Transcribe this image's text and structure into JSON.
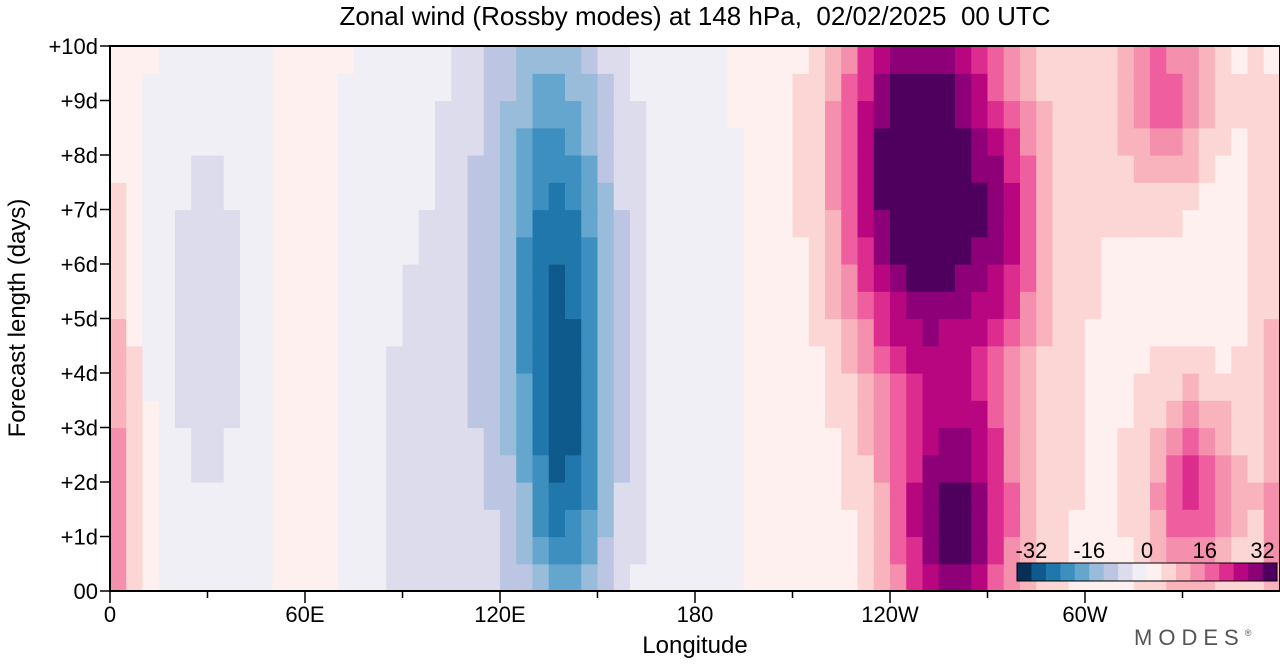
{
  "chart_data": {
    "type": "heatmap",
    "title": "Zonal wind (Rossby modes) at 148 hPa,  02/02/2025  00 UTC",
    "xlabel": "Longitude",
    "ylabel": "Forecast length (days)",
    "x_ticks": [
      "0",
      "60E",
      "120E",
      "180",
      "120W",
      "60W"
    ],
    "y_ticks": [
      "00",
      "+1d",
      "+2d",
      "+3d",
      "+4d",
      "+5d",
      "+6d",
      "+7d",
      "+8d",
      "+9d",
      "+10d"
    ],
    "colorbar": {
      "labels": [
        "-32",
        "-16",
        "0",
        "16",
        "32"
      ],
      "levels": [
        -36,
        -32,
        -28,
        -24,
        -20,
        -16,
        -12,
        -8,
        -4,
        0,
        4,
        8,
        12,
        16,
        20,
        24,
        28,
        32,
        36
      ],
      "colors": [
        "#082f56",
        "#0f5a8c",
        "#1f77ac",
        "#3d8fc0",
        "#64a6ce",
        "#99bcda",
        "#bcc6e2",
        "#dcdced",
        "#f1eff6",
        "#fdf0ef",
        "#fcd6d5",
        "#f9b3bd",
        "#f58fae",
        "#ef5fa0",
        "#dc2c8e",
        "#b80680",
        "#8e0078",
        "#4f005f"
      ]
    },
    "legend_placement": "bottom-right inside plot",
    "field_model": {
      "lon_step_deg": 5,
      "day_step": 0.5,
      "background": 0.7,
      "features": [
        {
          "lon": 245,
          "day": 8.0,
          "amp": 30,
          "wlon": 16,
          "wday": 2.6
        },
        {
          "lon": 255,
          "day": 4.5,
          "amp": 12,
          "wlon": 16,
          "wday": 4.0
        },
        {
          "lon": 258,
          "day": 0.8,
          "amp": 20,
          "wlon": 12,
          "wday": 1.6
        },
        {
          "lon": 268,
          "day": 2.0,
          "amp": 8,
          "wlon": 12,
          "wday": 2.0
        },
        {
          "lon": 275,
          "day": 6.5,
          "amp": 12,
          "wlon": 8,
          "wday": 1.4
        },
        {
          "lon": 268,
          "day": 8.5,
          "amp": 8,
          "wlon": 14,
          "wday": 2.0
        },
        {
          "lon": 300,
          "day": 5.0,
          "amp": 3,
          "wlon": 22,
          "wday": 6.0
        },
        {
          "lon": 333,
          "day": 1.8,
          "amp": 20,
          "wlon": 9,
          "wday": 1.3
        },
        {
          "lon": 325,
          "day": 9.2,
          "amp": 16,
          "wlon": 10,
          "wday": 1.3
        },
        {
          "lon": 355,
          "day": 5.0,
          "amp": 4,
          "wlon": 7,
          "wday": 7.0
        },
        {
          "lon": 2,
          "day": 1.0,
          "amp": 12,
          "wlon": 5,
          "wday": 3.0
        },
        {
          "lon": 140,
          "day": 5.0,
          "amp": -15,
          "wlon": 10,
          "wday": 3.5
        },
        {
          "lon": 140,
          "day": 2.0,
          "amp": -10,
          "wlon": 9,
          "wday": 2.0
        },
        {
          "lon": 130,
          "day": 7.0,
          "amp": -8,
          "wlon": 14,
          "wday": 3.0
        },
        {
          "lon": 133,
          "day": 4.0,
          "amp": -7,
          "wlon": 30,
          "wday": 8.0
        },
        {
          "lon": 95,
          "day": 2.0,
          "amp": -4,
          "wlon": 12,
          "wday": 3.0
        },
        {
          "lon": 30,
          "day": 5.0,
          "amp": -7,
          "wlon": 11,
          "wday": 3.5
        },
        {
          "lon": 60,
          "day": 4.0,
          "amp": 3,
          "wlon": 6,
          "wday": 3.0
        }
      ]
    }
  },
  "brand": {
    "name": "MODES",
    "mark": "®"
  }
}
